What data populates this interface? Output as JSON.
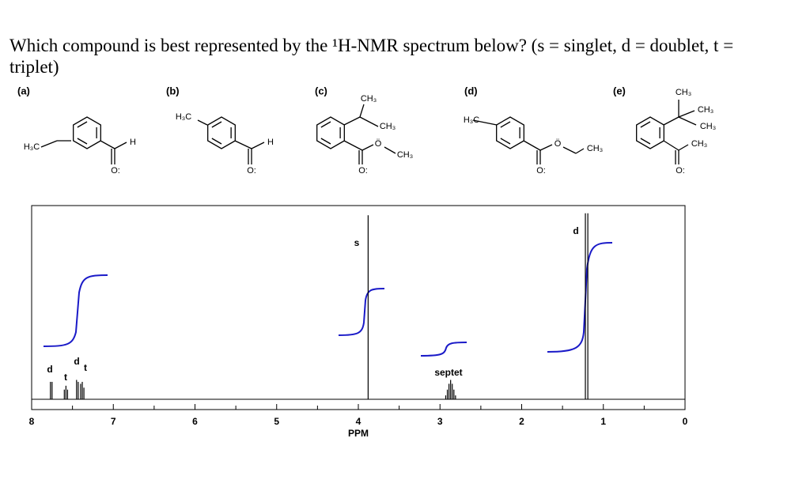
{
  "question": "Which compound is best represented by the ¹H-NMR spectrum below? (s = singlet, d = doublet, t = triplet)",
  "compounds": [
    {
      "label": "(a)",
      "atoms": [
        "H₃C",
        "H",
        "O:"
      ]
    },
    {
      "label": "(b)",
      "atoms": [
        "H₃C",
        "H",
        "O:"
      ]
    },
    {
      "label": "(c)",
      "atoms": [
        "CH₃",
        "CH₃",
        "Ö",
        "CH₃",
        "O:"
      ]
    },
    {
      "label": "(d)",
      "atoms": [
        "H₃C",
        "Ö",
        "CH₃",
        "O:"
      ]
    },
    {
      "label": "(e)",
      "atoms": [
        "CH₃",
        "CH₃",
        "CH₃",
        "CH₃",
        "O:"
      ]
    }
  ],
  "spectrum": {
    "x_label": "PPM",
    "xlim": [
      8,
      0
    ],
    "xticks": [
      8,
      7,
      6,
      5,
      4,
      3,
      2,
      1,
      0
    ],
    "minor_xticks": [
      7.5,
      6.5,
      5.5,
      4.5,
      3.5,
      2.5,
      1.5,
      0.5
    ],
    "peaks": [
      {
        "ppm": 7.77,
        "height": 0.09
      },
      {
        "ppm": 7.75,
        "height": 0.09
      },
      {
        "ppm": 7.6,
        "height": 0.05
      },
      {
        "ppm": 7.58,
        "height": 0.07
      },
      {
        "ppm": 7.56,
        "height": 0.05
      },
      {
        "ppm": 7.45,
        "height": 0.1
      },
      {
        "ppm": 7.43,
        "height": 0.09
      },
      {
        "ppm": 7.4,
        "height": 0.08
      },
      {
        "ppm": 7.38,
        "height": 0.09
      },
      {
        "ppm": 7.36,
        "height": 0.06
      },
      {
        "ppm": 3.88,
        "height": 0.95
      },
      {
        "ppm": 2.93,
        "height": 0.02
      },
      {
        "ppm": 2.91,
        "height": 0.05
      },
      {
        "ppm": 2.89,
        "height": 0.08
      },
      {
        "ppm": 2.87,
        "height": 0.1
      },
      {
        "ppm": 2.85,
        "height": 0.08
      },
      {
        "ppm": 2.83,
        "height": 0.05
      },
      {
        "ppm": 2.81,
        "height": 0.02
      },
      {
        "ppm": 1.22,
        "height": 0.96
      },
      {
        "ppm": 1.19,
        "height": 0.96
      }
    ],
    "peak_labels": [
      "d",
      "t",
      "d",
      "t",
      "s",
      "septet",
      "d"
    ]
  }
}
